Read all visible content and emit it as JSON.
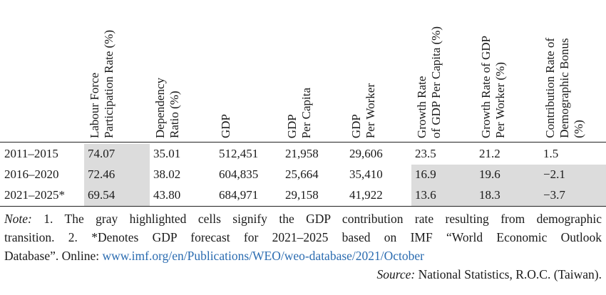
{
  "table": {
    "columns": [
      "",
      "Labour Force\nParticipation Rate (%)",
      "Dependency\nRatio (%)",
      "GDP",
      "GDP\nPer Capita",
      "GDP\nPer Worker",
      "Growth Rate\nof GDP Per Capita (%)",
      "Growth Rate of GDP\nPer Worker (%)",
      "Contribution Rate of\nDemographic Bonus\n(%)"
    ],
    "rows": [
      [
        "2011–2015",
        "74.07",
        "35.01",
        "512,451",
        "21,958",
        "29,606",
        "23.5",
        "21.2",
        "1.5"
      ],
      [
        "2016–2020",
        "72.46",
        "38.02",
        "604,835",
        "25,664",
        "35,410",
        "16.9",
        "19.6",
        "−2.1"
      ],
      [
        "2021–2025*",
        "69.54",
        "43.80",
        "684,971",
        "29,158",
        "41,922",
        "13.6",
        "18.3",
        "−3.7"
      ]
    ]
  },
  "notes": {
    "note_label": "Note:",
    "line1": " 1. The gray highlighted cells signify the GDP contribution rate resulting from demographic",
    "line2": "transition. 2. *Denotes GDP forecast for 2021–2025 based on IMF “World Economic Outlook",
    "line3_prefix": "Database”. Online: ",
    "link": "www.imf.org/en/Publications/WEO/weo-database/2021/October",
    "source_label": "Source:",
    "source_text": " National Statistics, R.O.C. (Taiwan)."
  },
  "colors": {
    "highlight": "#dcdcdc",
    "link": "#2a6bb0",
    "rule": "#222222"
  }
}
